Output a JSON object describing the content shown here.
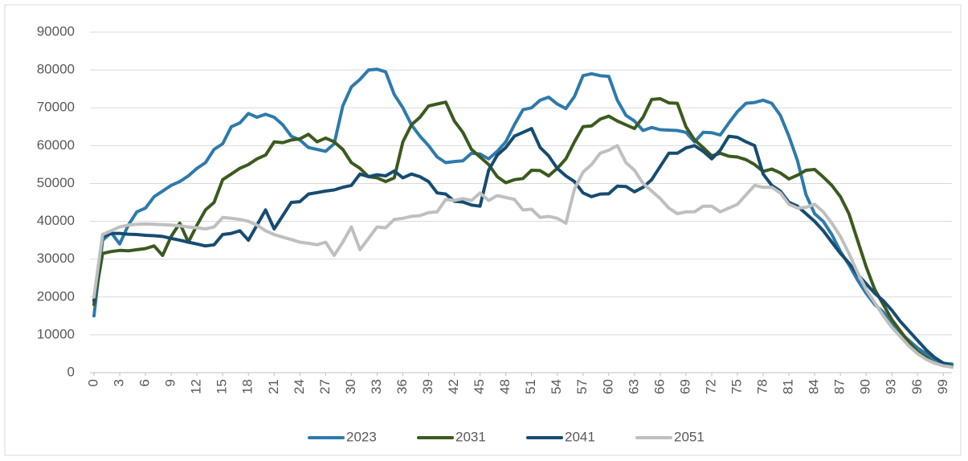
{
  "chart_data": {
    "type": "line",
    "x": [
      0,
      1,
      2,
      3,
      4,
      5,
      6,
      7,
      8,
      9,
      10,
      11,
      12,
      13,
      14,
      15,
      16,
      17,
      18,
      19,
      20,
      21,
      22,
      23,
      24,
      25,
      26,
      27,
      28,
      29,
      30,
      31,
      32,
      33,
      34,
      35,
      36,
      37,
      38,
      39,
      40,
      41,
      42,
      43,
      44,
      45,
      46,
      47,
      48,
      49,
      50,
      51,
      52,
      53,
      54,
      55,
      56,
      57,
      58,
      59,
      60,
      61,
      62,
      63,
      64,
      65,
      66,
      67,
      68,
      69,
      70,
      71,
      72,
      73,
      74,
      75,
      76,
      77,
      78,
      79,
      80,
      81,
      82,
      83,
      84,
      85,
      86,
      87,
      88,
      89,
      90,
      91,
      92,
      93,
      94,
      95,
      96,
      97,
      98,
      99,
      100
    ],
    "xlim": [
      0,
      100
    ],
    "xticks": [
      0,
      3,
      6,
      9,
      12,
      15,
      18,
      21,
      24,
      27,
      30,
      33,
      36,
      39,
      42,
      45,
      48,
      51,
      54,
      57,
      60,
      63,
      66,
      69,
      72,
      75,
      78,
      81,
      84,
      87,
      90,
      93,
      96,
      99
    ],
    "ylim": [
      0,
      90000
    ],
    "yticks": [
      0,
      10000,
      20000,
      30000,
      40000,
      50000,
      60000,
      70000,
      80000,
      90000
    ],
    "grid": true,
    "legend": "bottom",
    "series": [
      {
        "name": "2023",
        "color": "#2e7aab",
        "values": [
          15000,
          35000,
          37000,
          34000,
          39000,
          42500,
          43500,
          46500,
          48000,
          49500,
          50500,
          52000,
          54000,
          55500,
          59000,
          60500,
          65000,
          66000,
          68500,
          67500,
          68300,
          67500,
          65500,
          62500,
          61500,
          59500,
          59000,
          58500,
          60500,
          70500,
          75500,
          77500,
          80000,
          80200,
          79500,
          73500,
          70000,
          65500,
          62500,
          60000,
          57000,
          55500,
          55800,
          56000,
          58000,
          57800,
          56500,
          58500,
          61000,
          65500,
          69500,
          70000,
          72000,
          72800,
          71000,
          69800,
          73000,
          78500,
          79000,
          78500,
          78300,
          72000,
          68000,
          66500,
          64000,
          64800,
          64200,
          64100,
          64000,
          63500,
          61000,
          63500,
          63400,
          62800,
          66000,
          69000,
          71200,
          71400,
          72000,
          71200,
          68000,
          62500,
          56000,
          47000,
          42000,
          40000,
          36500,
          32000,
          28500,
          24500,
          21000,
          18000,
          16000,
          13000,
          10500,
          8500,
          6500,
          5000,
          3500,
          2500,
          2300
        ]
      },
      {
        "name": "2031",
        "color": "#3b5a1f",
        "values": [
          18000,
          31500,
          32000,
          32300,
          32200,
          32500,
          32800,
          33500,
          31000,
          36000,
          39500,
          34500,
          39000,
          43000,
          45000,
          51000,
          52500,
          54000,
          55000,
          56500,
          57500,
          61000,
          60800,
          61500,
          61800,
          63000,
          61000,
          62000,
          61000,
          59000,
          55500,
          54000,
          51800,
          51500,
          50500,
          51500,
          61000,
          65500,
          67500,
          70500,
          71000,
          71500,
          66500,
          63500,
          59000,
          57000,
          55000,
          51800,
          50200,
          51000,
          51300,
          53500,
          53400,
          52000,
          54000,
          56500,
          61000,
          65000,
          65200,
          67000,
          67800,
          66500,
          65500,
          64500,
          67500,
          72200,
          72400,
          71300,
          71200,
          65000,
          61500,
          59500,
          57300,
          58000,
          57200,
          57000,
          56300,
          55000,
          53200,
          53800,
          52800,
          51200,
          52200,
          53500,
          53700,
          51700,
          49500,
          46500,
          42000,
          35000,
          28000,
          22000,
          18000,
          14000,
          11000,
          8000,
          5500,
          4000,
          2500,
          2000,
          1500
        ]
      },
      {
        "name": "2041",
        "color": "#164c70",
        "values": [
          19000,
          36000,
          36800,
          36800,
          36600,
          36500,
          36300,
          36200,
          36000,
          35500,
          35000,
          34500,
          34000,
          33500,
          33800,
          36500,
          36800,
          37500,
          35000,
          39000,
          43000,
          38000,
          41500,
          45000,
          45200,
          47200,
          47600,
          48000,
          48300,
          49000,
          49500,
          52500,
          51800,
          52300,
          52000,
          53300,
          51500,
          52500,
          51800,
          50500,
          47500,
          47200,
          45300,
          45100,
          44300,
          44000,
          53500,
          57500,
          59500,
          62500,
          63500,
          64500,
          59500,
          57300,
          54000,
          52000,
          50500,
          47500,
          46500,
          47200,
          47300,
          49300,
          49200,
          47800,
          49000,
          51000,
          54500,
          58000,
          58000,
          59400,
          60000,
          58500,
          56500,
          58800,
          62500,
          62200,
          61000,
          60000,
          52500,
          49500,
          48000,
          45000,
          44000,
          42000,
          40000,
          37500,
          34500,
          31500,
          29000,
          26000,
          23500,
          21000,
          19000,
          16500,
          13500,
          11000,
          8500,
          6000,
          4000,
          2500,
          1800
        ]
      },
      {
        "name": "2051",
        "color": "#bfbfbf",
        "values": [
          20000,
          36500,
          37500,
          38500,
          39000,
          39200,
          39300,
          39200,
          39100,
          39000,
          38800,
          38500,
          38300,
          38000,
          38500,
          41000,
          40800,
          40500,
          40000,
          39000,
          37500,
          36500,
          35800,
          35200,
          34500,
          34200,
          33800,
          34500,
          31000,
          34500,
          38500,
          32500,
          35500,
          38500,
          38300,
          40500,
          40800,
          41300,
          41500,
          42300,
          42500,
          45800,
          45500,
          46000,
          45500,
          47500,
          45500,
          46800,
          46300,
          45800,
          43000,
          43200,
          41000,
          41300,
          40800,
          39500,
          48500,
          53000,
          55000,
          58000,
          58800,
          60000,
          55500,
          53500,
          50000,
          48000,
          46000,
          43500,
          42000,
          42500,
          42500,
          44000,
          44000,
          42500,
          43500,
          44500,
          47000,
          49500,
          49000,
          49000,
          47500,
          44500,
          43500,
          43700,
          44500,
          42500,
          39500,
          36000,
          31500,
          26500,
          22000,
          18500,
          15000,
          12000,
          9500,
          7000,
          5000,
          3500,
          2500,
          1800,
          1500
        ]
      }
    ]
  }
}
